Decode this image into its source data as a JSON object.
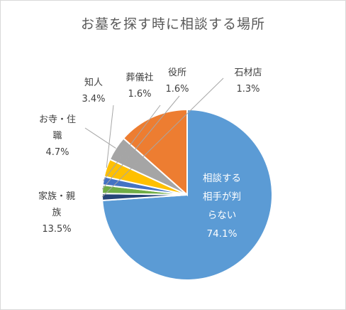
{
  "chart_data": {
    "type": "pie",
    "title": "お墓を探す時に相談する場所",
    "slices": [
      {
        "label_lines": [
          "相談する",
          "相手が判",
          "らない"
        ],
        "value": 74.1,
        "value_text": "74.1%",
        "color": "#5b9bd5"
      },
      {
        "label_lines": [
          "石材店"
        ],
        "value": 1.3,
        "value_text": "1.3%",
        "color": "#264478"
      },
      {
        "label_lines": [
          "役所"
        ],
        "value": 1.6,
        "value_text": "1.6%",
        "color": "#70ad47"
      },
      {
        "label_lines": [
          "葬儀社"
        ],
        "value": 1.6,
        "value_text": "1.6%",
        "color": "#4472c4"
      },
      {
        "label_lines": [
          "知人"
        ],
        "value": 3.4,
        "value_text": "3.4%",
        "color": "#ffc000"
      },
      {
        "label_lines": [
          "お寺・住",
          "職"
        ],
        "value": 4.7,
        "value_text": "4.7%",
        "color": "#a5a5a5"
      },
      {
        "label_lines": [
          "家族・親",
          "族"
        ],
        "value": 13.5,
        "value_text": "13.5%",
        "color": "#ed7d31"
      }
    ]
  }
}
